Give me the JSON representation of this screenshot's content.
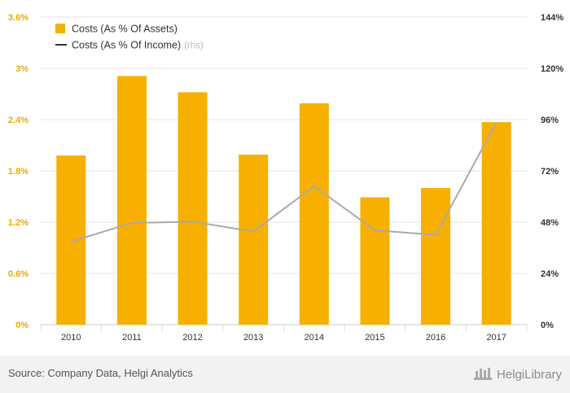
{
  "chart_data": {
    "type": "bar",
    "categories": [
      "2010",
      "2011",
      "2012",
      "2013",
      "2014",
      "2015",
      "2016",
      "2017"
    ],
    "series": [
      {
        "name": "Costs (As % Of Assets)",
        "type": "bar",
        "axis": "left",
        "color": "#f8b000",
        "values": [
          1.98,
          2.91,
          2.72,
          1.99,
          2.59,
          1.49,
          1.6,
          2.37
        ]
      },
      {
        "name": "Costs (As % Of Income)",
        "name_suffix": "(rhs)",
        "type": "line",
        "axis": "right",
        "color": "#aaaaaa",
        "legend_color": "#333333",
        "values": [
          38.9,
          47.6,
          48.2,
          43.6,
          64.8,
          44.2,
          42.0,
          94.8
        ]
      }
    ],
    "y_left": {
      "ylim": [
        0,
        3.6
      ],
      "ticks": [
        "0%",
        "0.6%",
        "1.2%",
        "1.8%",
        "2.4%",
        "3%",
        "3.6%"
      ],
      "tick_color": "#f0a800"
    },
    "y_right": {
      "ylim": [
        0,
        144
      ],
      "ticks": [
        "0%",
        "24%",
        "48%",
        "72%",
        "96%",
        "120%",
        "144%"
      ],
      "tick_color": "#333333"
    },
    "grid": true,
    "legend": "top-left"
  },
  "footer": {
    "source": "Source: Company Data, Helgi Analytics",
    "logo_text": "HelgiLibrary"
  }
}
